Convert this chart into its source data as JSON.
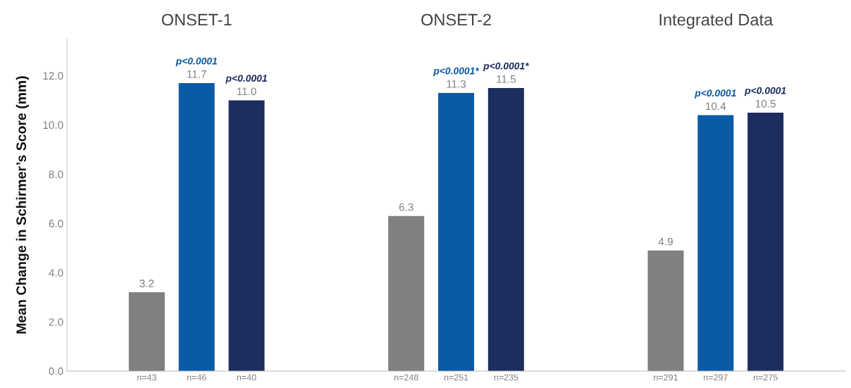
{
  "chart_data": [
    {
      "type": "bar",
      "title": "ONSET-1",
      "ylabel": "Mean Change in Schirmer’s Score (mm)",
      "categories": [
        "n=43",
        "n=46",
        "n=40"
      ],
      "values": [
        3.2,
        11.7,
        11.0
      ],
      "value_labels": [
        "3.2",
        "11.7",
        "11.0"
      ],
      "colors": [
        "#808080",
        "#0b5aa6",
        "#1c2d5e"
      ],
      "ylim": [
        0,
        13.5
      ],
      "yticks": [
        {
          "value": 0,
          "label": "0.0"
        },
        {
          "value": 2,
          "label": "2.0"
        },
        {
          "value": 4,
          "label": "4.0"
        },
        {
          "value": 6,
          "label": "6.0"
        },
        {
          "value": 8,
          "label": "8.0"
        },
        {
          "value": 10,
          "label": "10.0"
        },
        {
          "value": 12,
          "label": "12.0"
        }
      ],
      "grid": false,
      "legend": false,
      "annotations": [
        {
          "text": "p<0.0001",
          "x": "n=46",
          "y": 11.7
        },
        {
          "text": "p<0.0001",
          "x": "n=40",
          "y": 11.0
        }
      ]
    },
    {
      "type": "bar",
      "title": "ONSET-2",
      "categories": [
        "n=248",
        "n=251",
        "n=235"
      ],
      "values": [
        6.3,
        11.3,
        11.5
      ],
      "value_labels": [
        "6.3",
        "11.3",
        "11.5"
      ],
      "colors": [
        "#808080",
        "#0b5aa6",
        "#1c2d5e"
      ],
      "ylim": [
        0,
        13.5
      ],
      "tick_labels": "x",
      "grid": false,
      "legend": false,
      "annotations": [
        {
          "text": "p<0.0001*",
          "x": "n=251",
          "y": 11.3
        },
        {
          "text": "p<0.0001*",
          "x": "n=235",
          "y": 11.5
        }
      ]
    },
    {
      "type": "bar",
      "title": "Integrated Data",
      "categories": [
        "n=291",
        "n=297",
        "n=275"
      ],
      "values": [
        4.9,
        10.4,
        10.5
      ],
      "value_labels": [
        "4.9",
        "10.4",
        "10.5"
      ],
      "colors": [
        "#808080",
        "#0b5aa6",
        "#1c2d5e"
      ],
      "ylim": [
        0,
        13.5
      ],
      "tick_labels": "x",
      "grid": false,
      "legend": false,
      "annotations": [
        {
          "text": "p<0.0001",
          "x": "n=297",
          "y": 10.4
        },
        {
          "text": "p<0.0001",
          "x": "n=275",
          "y": 10.5
        }
      ]
    }
  ]
}
